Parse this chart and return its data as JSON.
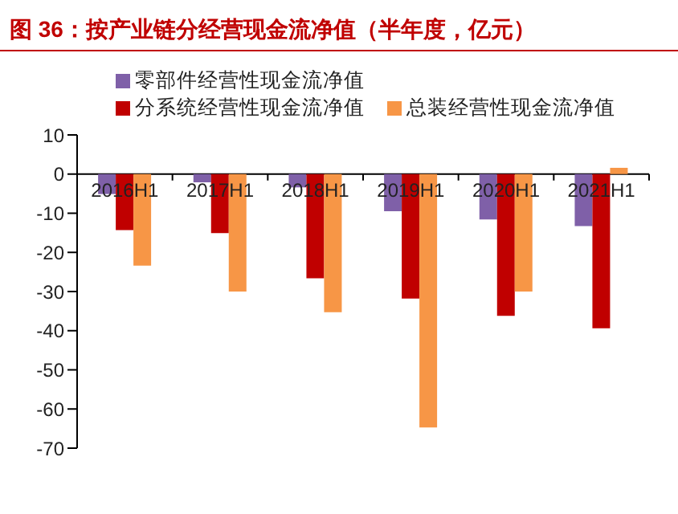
{
  "chart_data": {
    "type": "bar",
    "title": "图 36：按产业链分经营现金流净值（半年度，亿元）",
    "categories": [
      "2016H1",
      "2017H1",
      "2018H1",
      "2019H1",
      "2020H1",
      "2021H1"
    ],
    "series": [
      {
        "name": "零部件经营性现金流净值",
        "color": "#7f60a8",
        "values": [
          -5.1,
          -2.1,
          -3.4,
          -9.5,
          -11.6,
          -13.3
        ]
      },
      {
        "name": "分系统经营性现金流净值",
        "color": "#c00000",
        "values": [
          -14.3,
          -15.1,
          -26.6,
          -31.8,
          -36.2,
          -39.4
        ]
      },
      {
        "name": "总装经营性现金流净值",
        "color": "#f79646",
        "values": [
          -23.4,
          -30,
          -35.3,
          -64.7,
          -30,
          1.6
        ]
      }
    ],
    "ylim": [
      -70,
      10
    ],
    "yticks": [
      -70,
      -60,
      -50,
      -40,
      -30,
      -20,
      -10,
      0,
      10
    ],
    "grid": false,
    "legend": "top"
  }
}
